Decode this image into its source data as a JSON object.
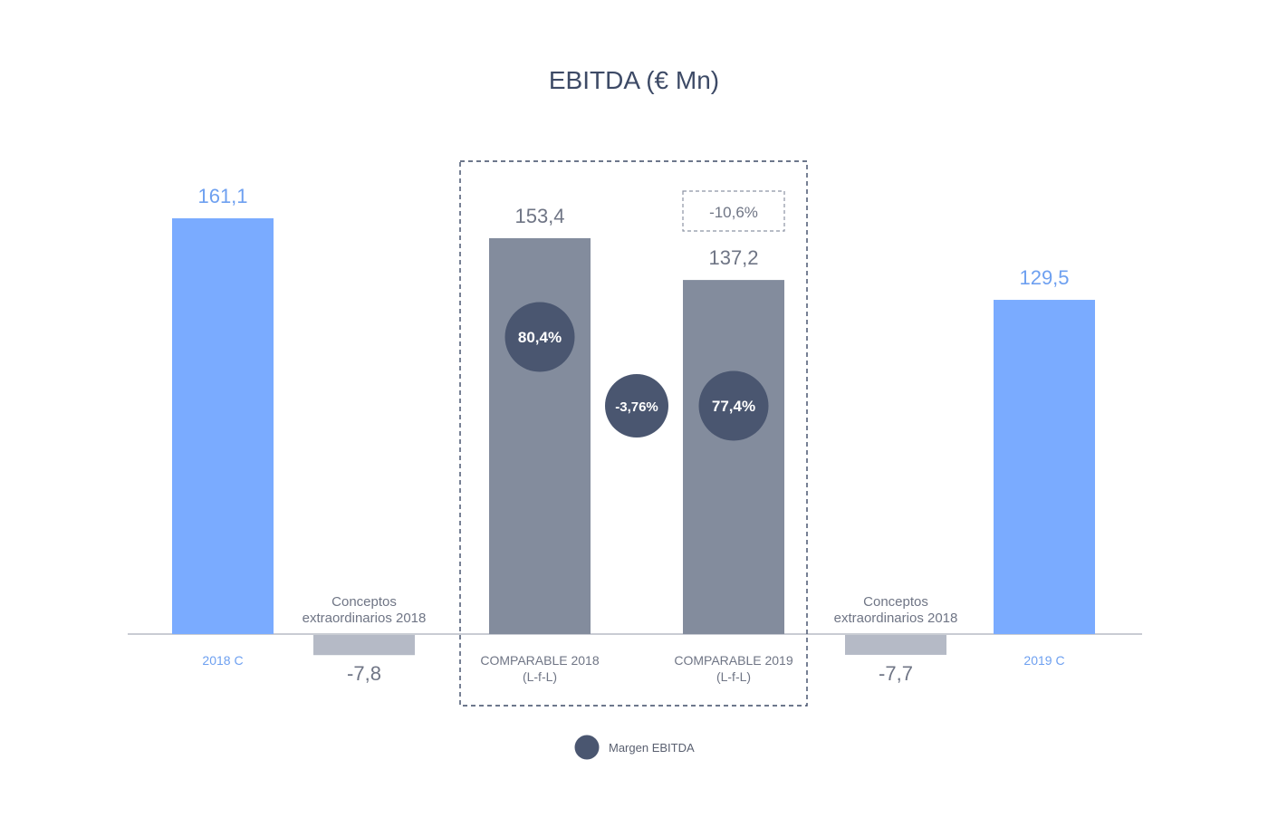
{
  "chart_data": {
    "type": "bar",
    "title": "EBITDA (€ Mn)",
    "colors": {
      "reported": "#7aabff",
      "comparable": "#838c9d",
      "adjustment": "#b5bac6",
      "margin": "#4a5670",
      "text_reported": "#6ea0f0",
      "text_neutral": "#6f7585"
    },
    "bars": [
      {
        "category": "2018 C",
        "value": 161.1,
        "value_label": "161,1",
        "kind": "reported"
      },
      {
        "category": "Conceptos extraordinarios 2018",
        "category_lines": [
          "Conceptos",
          "extraordinarios 2018"
        ],
        "value": -7.8,
        "value_label": "-7,8",
        "kind": "adjustment"
      },
      {
        "category": "COMPARABLE 2018 (L-f-L)",
        "category_lines": [
          "COMPARABLE 2018",
          "(L-f-L)"
        ],
        "value": 153.4,
        "value_label": "153,4",
        "kind": "comparable",
        "margin_label": "80,4%"
      },
      {
        "category": "COMPARABLE 2019 (L-f-L)",
        "category_lines": [
          "COMPARABLE 2019",
          "(L-f-L)"
        ],
        "value": 137.2,
        "value_label": "137,2",
        "kind": "comparable",
        "margin_label": "77,4%"
      },
      {
        "category": "Conceptos extraordinarios 2018",
        "category_lines": [
          "Conceptos",
          "extraordinarios 2018"
        ],
        "value": -7.7,
        "value_label": "-7,7",
        "kind": "adjustment"
      },
      {
        "category": "2019 C",
        "value": 129.5,
        "value_label": "129,5",
        "kind": "reported"
      }
    ],
    "comparable_change": "-10,6%",
    "margin_change": "-3,76%",
    "legend": [
      {
        "label": "Margen EBITDA",
        "marker": "circle"
      }
    ],
    "ylim": [
      -10,
      200
    ],
    "grid": false
  }
}
